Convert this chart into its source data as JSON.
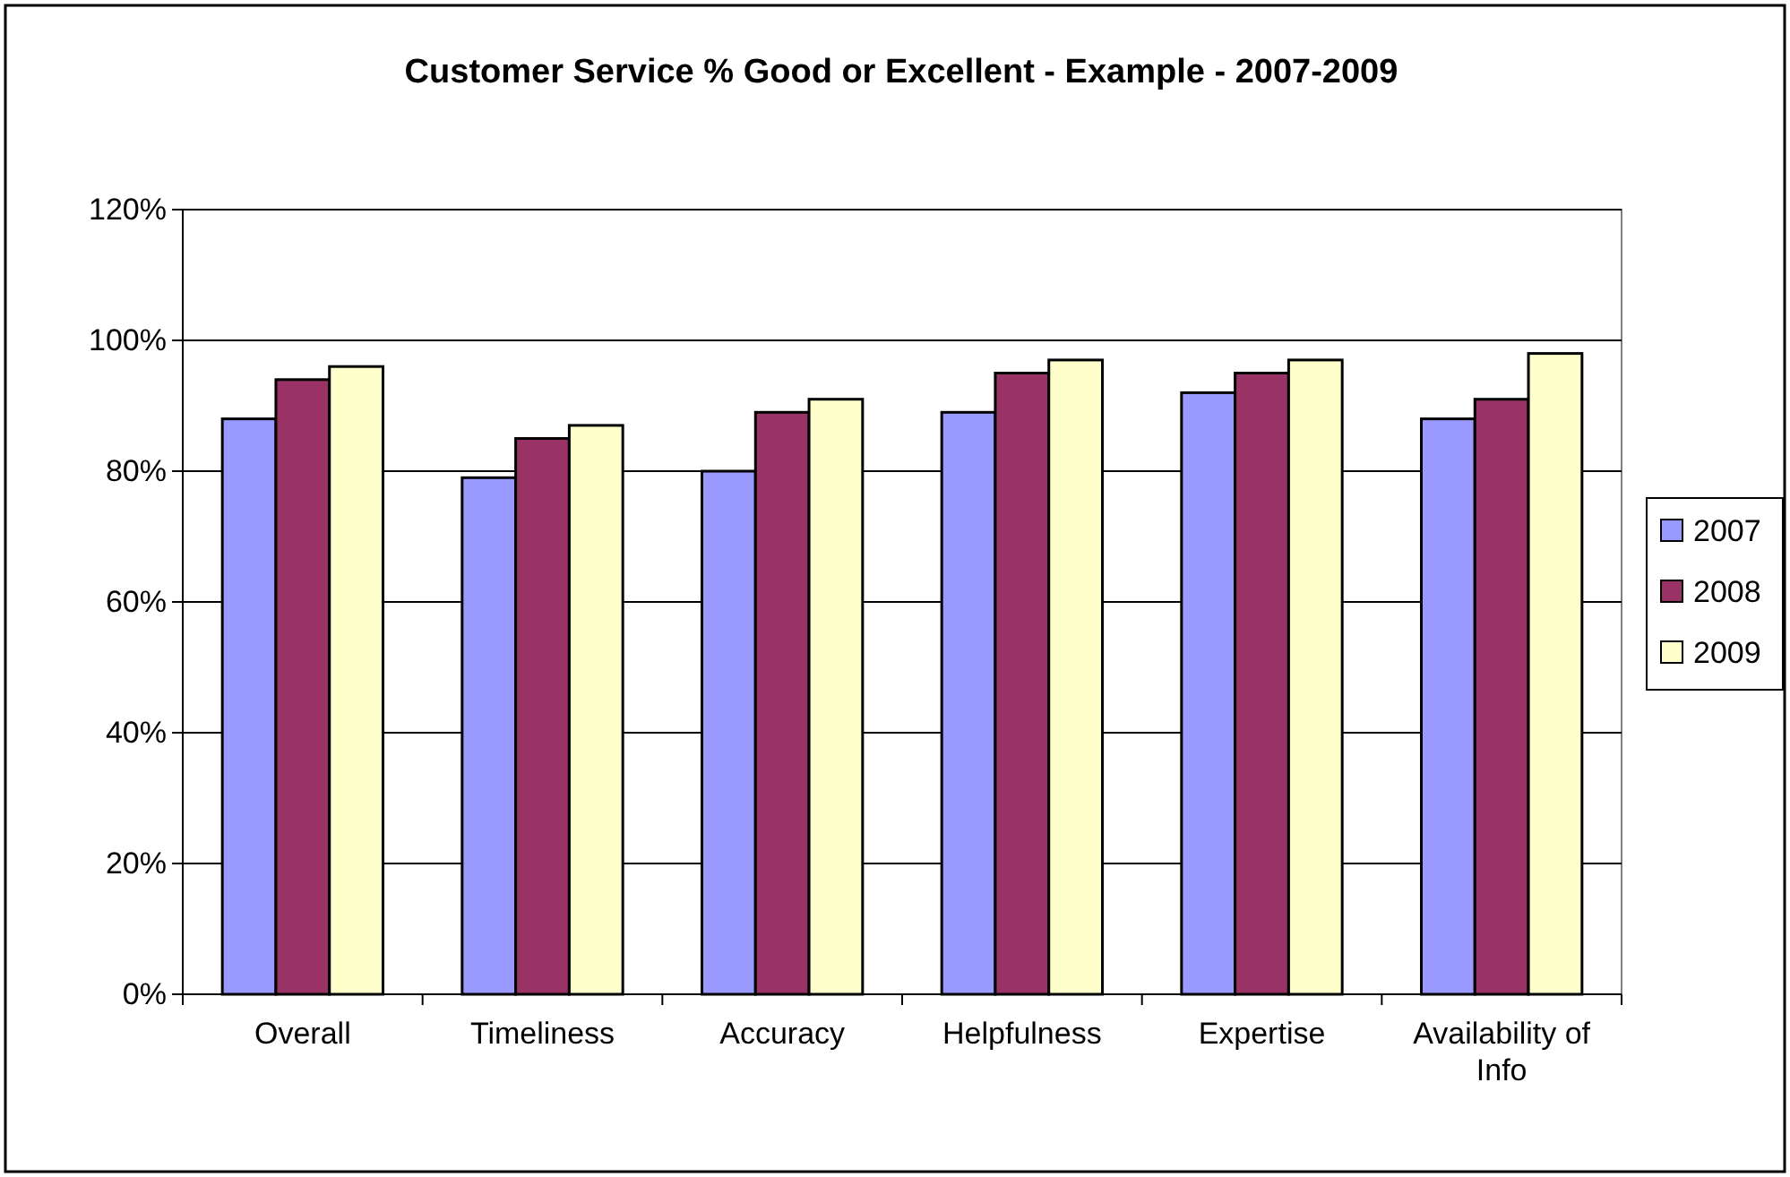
{
  "chart_data": {
    "type": "bar",
    "title": "Customer Service % Good or Excellent - Example - 2007-2009",
    "categories": [
      "Overall",
      "Timeliness",
      "Accuracy",
      "Helpfulness",
      "Expertise",
      "Availability of Info"
    ],
    "series": [
      {
        "name": "2007",
        "color": "#9999ff",
        "values": [
          0.88,
          0.79,
          0.8,
          0.89,
          0.92,
          0.88
        ]
      },
      {
        "name": "2008",
        "color": "#993366",
        "values": [
          0.94,
          0.85,
          0.89,
          0.95,
          0.95,
          0.91
        ]
      },
      {
        "name": "2009",
        "color": "#ffffcc",
        "values": [
          0.96,
          0.87,
          0.91,
          0.97,
          0.97,
          0.98
        ]
      }
    ],
    "ylim": [
      0,
      1.2
    ],
    "yticks": [
      {
        "value": 0,
        "label": "0%"
      },
      {
        "value": 0.2,
        "label": "20%"
      },
      {
        "value": 0.4,
        "label": "40%"
      },
      {
        "value": 0.6,
        "label": "60%"
      },
      {
        "value": 0.8,
        "label": "80%"
      },
      {
        "value": 1,
        "label": "100%"
      },
      {
        "value": 1.2,
        "label": "120%"
      }
    ],
    "grid": "y",
    "legend": "right"
  }
}
